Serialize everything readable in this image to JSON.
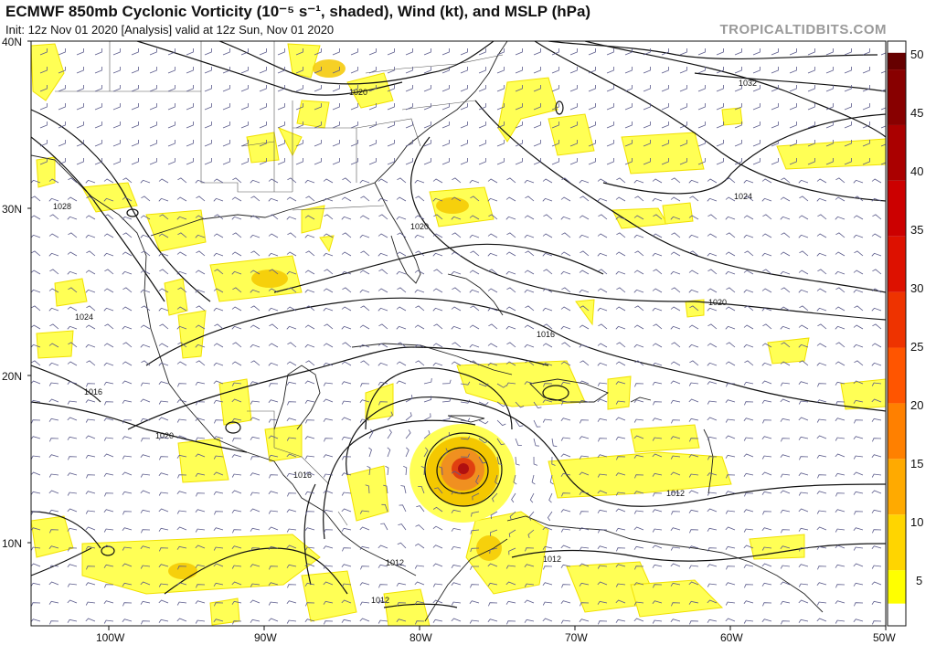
{
  "header": {
    "title": "ECMWF 850mb Cyclonic Vorticity (10⁻⁵ s⁻¹, shaded), Wind (kt), and MSLP (hPa)",
    "subtitle": "Init: 12z Nov 01 2020  [Analysis]   valid at 12z Sun, Nov 01 2020",
    "brand": "TROPICALTIDBITS.COM"
  },
  "map": {
    "lat_labels": [
      "40N",
      "30N",
      "20N",
      "10N"
    ],
    "lon_labels": [
      "100W",
      "90W",
      "80W",
      "70W",
      "60W",
      "50W"
    ],
    "isobar_labels": [
      "1032",
      "1024",
      "1020",
      "1016",
      "1012",
      "1028",
      "1020",
      "1024",
      "1016",
      "1020",
      "1016",
      "1020",
      "1012",
      "1012",
      "1012",
      "1012"
    ],
    "colors": {
      "low": "#ffff66",
      "mid": "#f4c800",
      "high": "#e06010",
      "peak": "#b01010"
    }
  },
  "colorbar": {
    "ticks": [
      "50",
      "45",
      "40",
      "35",
      "30",
      "25",
      "20",
      "15",
      "10",
      "5"
    ],
    "colors": [
      "#ffffff",
      "#ffff00",
      "#ffd500",
      "#ffaa00",
      "#ff8000",
      "#ff5500",
      "#ee3300",
      "#dd1100",
      "#cc0000",
      "#aa0000",
      "#880000",
      "#660000"
    ]
  }
}
